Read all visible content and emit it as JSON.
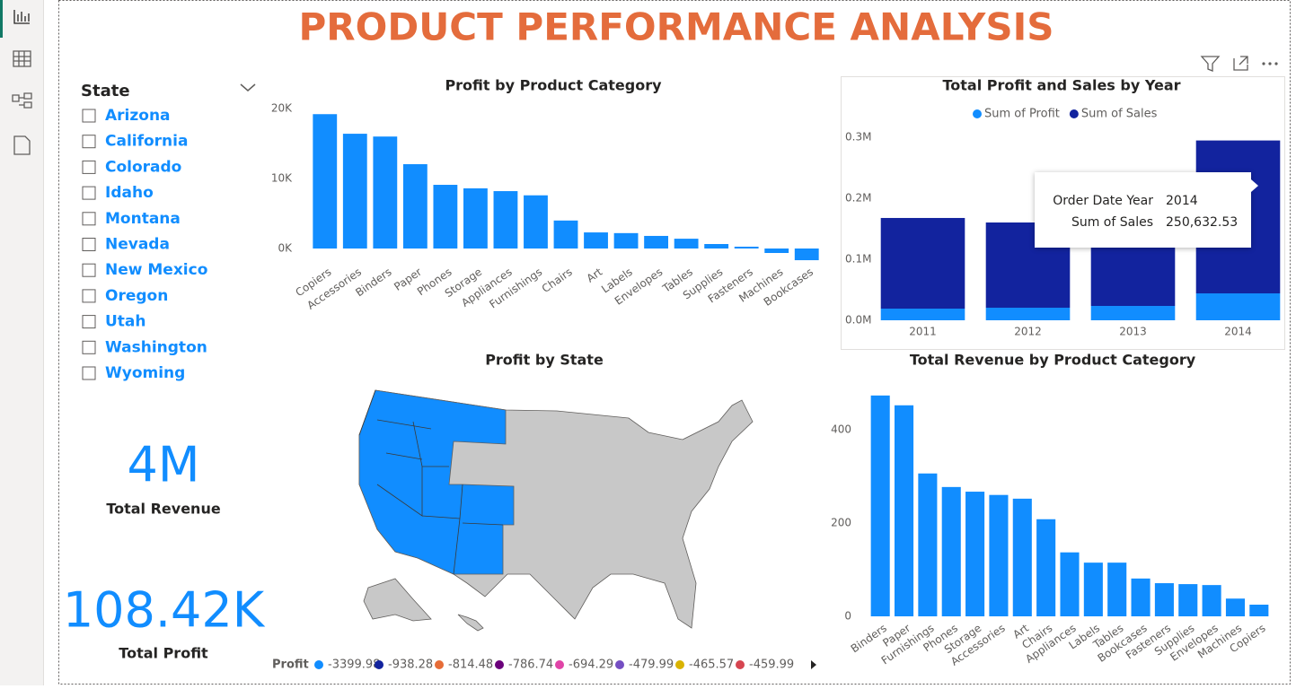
{
  "header": {
    "title": "PRODUCT PERFORMANCE ANALYSIS"
  },
  "slicer": {
    "title": "State",
    "items": [
      "Arizona",
      "California",
      "Colorado",
      "Idaho",
      "Montana",
      "Nevada",
      "New Mexico",
      "Oregon",
      "Utah",
      "Washington",
      "Wyoming"
    ]
  },
  "cards": [
    {
      "value": "4M",
      "label": "Total Revenue"
    },
    {
      "value": "108.42K",
      "label": "Total Profit"
    }
  ],
  "chart_data": [
    {
      "type": "bar",
      "title": "Profit by Product Category",
      "categories": [
        "Copiers",
        "Accessories",
        "Binders",
        "Paper",
        "Phones",
        "Storage",
        "Appliances",
        "Furnishings",
        "Chairs",
        "Art",
        "Labels",
        "Envelopes",
        "Tables",
        "Supplies",
        "Fasteners",
        "Machines",
        "Bookcases"
      ],
      "values": [
        19200,
        16400,
        16000,
        12050,
        9100,
        8600,
        8200,
        7600,
        4000,
        2300,
        2200,
        1800,
        1400,
        640,
        260,
        -640,
        -1670
      ],
      "color": "#118DFF",
      "ylim": [
        -2000,
        20000
      ],
      "yticks": [
        {
          "value": 0,
          "label": "0K"
        },
        {
          "value": 10000,
          "label": "10K"
        },
        {
          "value": 20000,
          "label": "20K"
        }
      ],
      "grid": false
    },
    {
      "type": "stacked_bar",
      "title": "Total Profit and Sales by Year",
      "categories": [
        "2011",
        "2012",
        "2013",
        "2014"
      ],
      "series": [
        {
          "name": "Sum of Profit",
          "color": "#118DFF",
          "values": [
            19100,
            20600,
            23500,
            44100
          ]
        },
        {
          "name": "Sum of Sales",
          "color": "#12239E",
          "values": [
            148600,
            139700,
            132000,
            250632.53
          ]
        }
      ],
      "ylim": [
        0,
        300000
      ],
      "yticks": [
        {
          "value": 0,
          "label": "0.0M"
        },
        {
          "value": 100000,
          "label": "0.1M"
        },
        {
          "value": 200000,
          "label": "0.2M"
        },
        {
          "value": 300000,
          "label": "0.3M"
        }
      ],
      "grid": false,
      "legend": "top",
      "tooltip": [
        {
          "label": "Order Date Year",
          "value": "2014"
        },
        {
          "label": "Sum of Sales",
          "value": "250,632.53"
        }
      ]
    },
    {
      "type": "map",
      "title": "Profit by State",
      "legend_title": "Profit",
      "legend": [
        {
          "label": "-3399.98",
          "color": "#118DFF"
        },
        {
          "label": "-938.28",
          "color": "#12239E"
        },
        {
          "label": "-814.48",
          "color": "#E66C37"
        },
        {
          "label": "-786.74",
          "color": "#6B007B"
        },
        {
          "label": "-694.29",
          "color": "#E044A7"
        },
        {
          "label": "-479.99",
          "color": "#744EC2"
        },
        {
          "label": "-465.57",
          "color": "#D9B300"
        },
        {
          "label": "-459.99",
          "color": "#D64550"
        }
      ]
    },
    {
      "type": "bar",
      "title": "Total Revenue by Product Category",
      "categories": [
        "Binders",
        "Paper",
        "Furnishings",
        "Phones",
        "Storage",
        "Accessories",
        "Art",
        "Chairs",
        "Appliances",
        "Labels",
        "Tables",
        "Bookcases",
        "Fasteners",
        "Supplies",
        "Envelopes",
        "Machines",
        "Copiers"
      ],
      "values": [
        473,
        452,
        306,
        277,
        267,
        260,
        252,
        208,
        137,
        115,
        115,
        81,
        71,
        69,
        67,
        38,
        25
      ],
      "color": "#118DFF",
      "ylim": [
        0,
        490
      ],
      "yticks": [
        0,
        200,
        400
      ],
      "grid": false
    }
  ]
}
